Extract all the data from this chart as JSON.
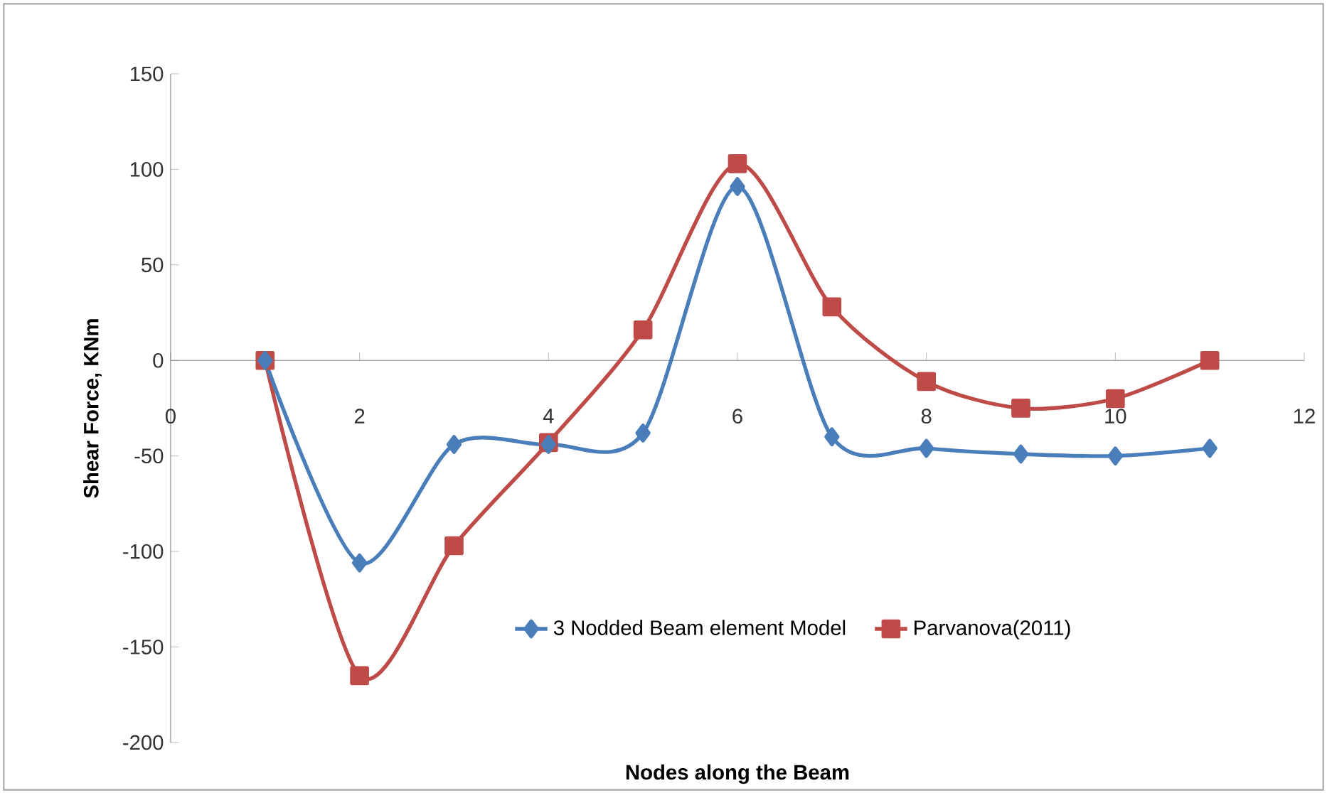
{
  "chart_data": {
    "type": "line",
    "xlabel": "Nodes  along the Beam",
    "ylabel": "Shear Force, KNm",
    "x": [
      1,
      2,
      3,
      4,
      5,
      6,
      7,
      8,
      9,
      10,
      11
    ],
    "series": [
      {
        "name": "3 Nodded Beam element Model",
        "color": "#4a7ebb",
        "marker": "diamond",
        "values": [
          0,
          -106,
          -44,
          -44,
          -38,
          91,
          -40,
          -46,
          -49,
          -50,
          -46
        ]
      },
      {
        "name": "Parvanova(2011)",
        "color": "#be4b48",
        "marker": "square",
        "values": [
          0,
          -165,
          -97,
          -43,
          16,
          103,
          28,
          -11,
          -25,
          -20,
          0
        ]
      }
    ],
    "xlim": [
      0,
      12
    ],
    "xticks": [
      0,
      2,
      4,
      6,
      8,
      10,
      12
    ],
    "ylim": [
      -200,
      150
    ],
    "yticks": [
      -200,
      -150,
      -100,
      -50,
      0,
      50,
      100,
      150
    ],
    "grid": false,
    "legend": "bottom"
  }
}
